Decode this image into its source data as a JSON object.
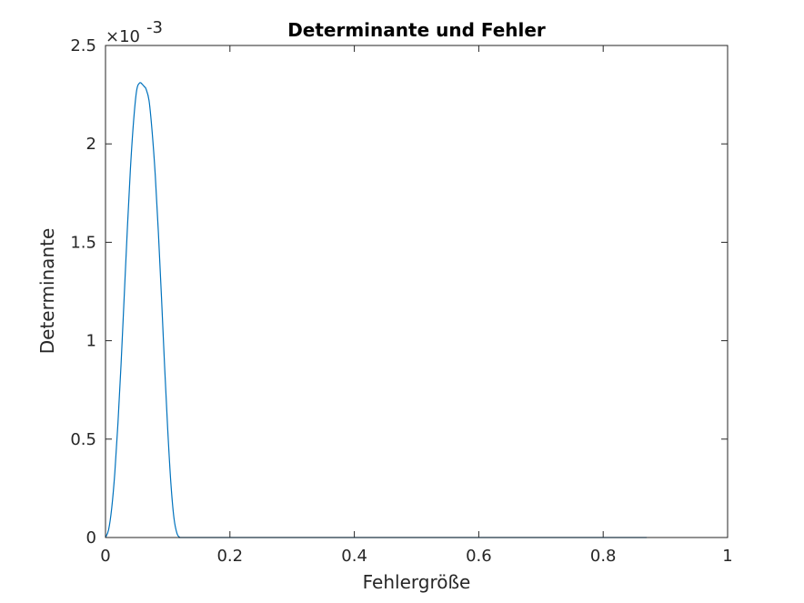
{
  "chart_data": {
    "type": "line",
    "title": "Determinante und Fehler",
    "xlabel": "Fehlergröße",
    "ylabel": "Determinante",
    "xlim": [
      0,
      1
    ],
    "ylim": [
      0,
      0.0025
    ],
    "y_exponent": {
      "base": "×10",
      "power": "-3"
    },
    "x_ticks": [
      0,
      0.2,
      0.4,
      0.6,
      0.8,
      1
    ],
    "x_tick_labels": [
      "0",
      "0.2",
      "0.4",
      "0.6",
      "0.8",
      "1"
    ],
    "y_ticks": [
      0,
      0.0005,
      0.001,
      0.0015,
      0.002,
      0.0025
    ],
    "y_tick_labels": [
      "0",
      "0.5",
      "1",
      "1.5",
      "2",
      "2.5"
    ],
    "grid": false,
    "line_color": "#0072BD",
    "series": [
      {
        "x": [
          0,
          0.005,
          0.01,
          0.015,
          0.02,
          0.025,
          0.03,
          0.035,
          0.04,
          0.045,
          0.05,
          0.055,
          0.06,
          0.0625,
          0.065,
          0.07,
          0.075,
          0.08,
          0.085,
          0.09,
          0.095,
          0.1,
          0.105,
          0.11,
          0.115,
          0.12,
          0.125,
          0.2,
          0.4,
          0.6,
          0.8,
          0.87
        ],
        "y": [
          0,
          4e-05,
          0.00015,
          0.00033,
          0.00058,
          0.00088,
          0.00122,
          0.00156,
          0.00187,
          0.00211,
          0.00227,
          0.00231,
          0.0023,
          0.00229,
          0.00228,
          0.00222,
          0.00206,
          0.00184,
          0.00155,
          0.00122,
          0.00087,
          0.00055,
          0.00028,
          0.0001,
          2e-05,
          0,
          0,
          0,
          0,
          0,
          0,
          0
        ]
      }
    ]
  }
}
